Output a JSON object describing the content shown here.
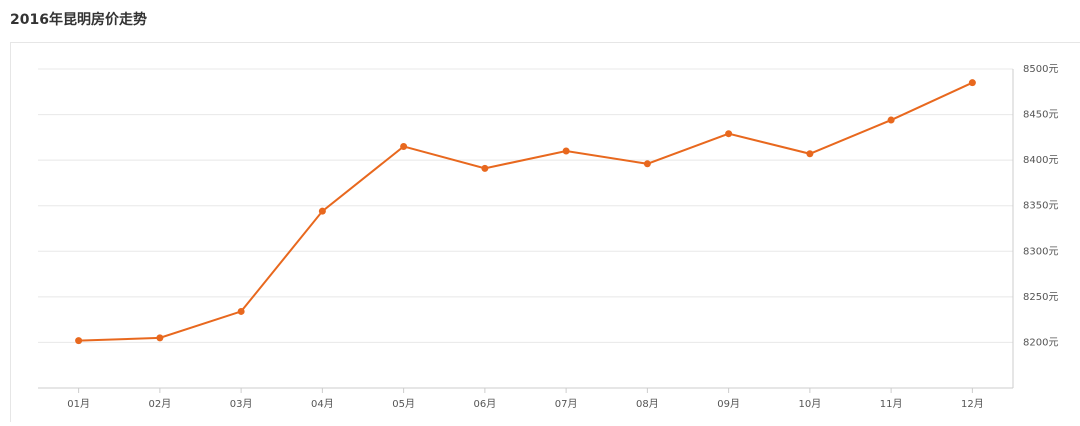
{
  "chart_data": {
    "type": "line",
    "title": "2016年昆明房价走势",
    "categories": [
      "01月",
      "02月",
      "03月",
      "04月",
      "05月",
      "06月",
      "07月",
      "08月",
      "09月",
      "10月",
      "11月",
      "12月"
    ],
    "values": [
      8202,
      8205,
      8234,
      8344,
      8415,
      8391,
      8410,
      8396,
      8429,
      8407,
      8444,
      8485
    ],
    "color": "#e8681e",
    "ylim": [
      8150,
      8500
    ],
    "yticks": [
      {
        "value": 8200,
        "label": "8200元"
      },
      {
        "value": 8250,
        "label": "8250元"
      },
      {
        "value": 8300,
        "label": "8300元"
      },
      {
        "value": 8350,
        "label": "8350元"
      },
      {
        "value": 8400,
        "label": "8400元"
      },
      {
        "value": 8450,
        "label": "8450元"
      },
      {
        "value": 8500,
        "label": "8500元"
      }
    ],
    "grid": true
  }
}
